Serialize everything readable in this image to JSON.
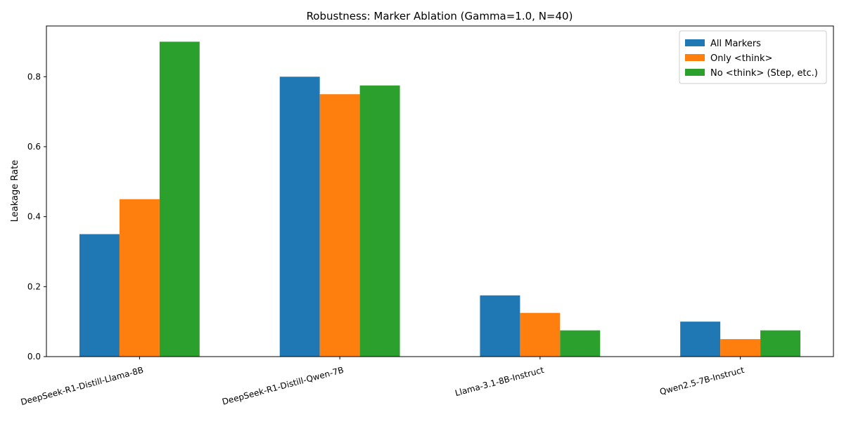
{
  "chart_data": {
    "type": "bar",
    "title": "Robustness: Marker Ablation (Gamma=1.0, N=40)",
    "xlabel": "",
    "ylabel": "Leakage Rate",
    "categories": [
      "DeepSeek-R1-Distill-Llama-8B",
      "DeepSeek-R1-Distill-Qwen-7B",
      "Llama-3.1-8B-Instruct",
      "Qwen2.5-7B-Instruct"
    ],
    "series": [
      {
        "name": "All Markers",
        "color": "#1f77b4",
        "values": [
          0.35,
          0.8,
          0.175,
          0.1
        ]
      },
      {
        "name": "Only <think>",
        "color": "#ff7f0e",
        "values": [
          0.45,
          0.75,
          0.125,
          0.05
        ]
      },
      {
        "name": "No <think> (Step, etc.)",
        "color": "#2ca02c",
        "values": [
          0.9,
          0.775,
          0.075,
          0.075
        ]
      }
    ],
    "ylim": [
      0,
      0.945
    ],
    "yticks": [
      0.0,
      0.2,
      0.4,
      0.6,
      0.8
    ],
    "ytick_labels": [
      "0.0",
      "0.2",
      "0.4",
      "0.6",
      "0.8"
    ],
    "legend_position": "top-right",
    "grid": false
  }
}
